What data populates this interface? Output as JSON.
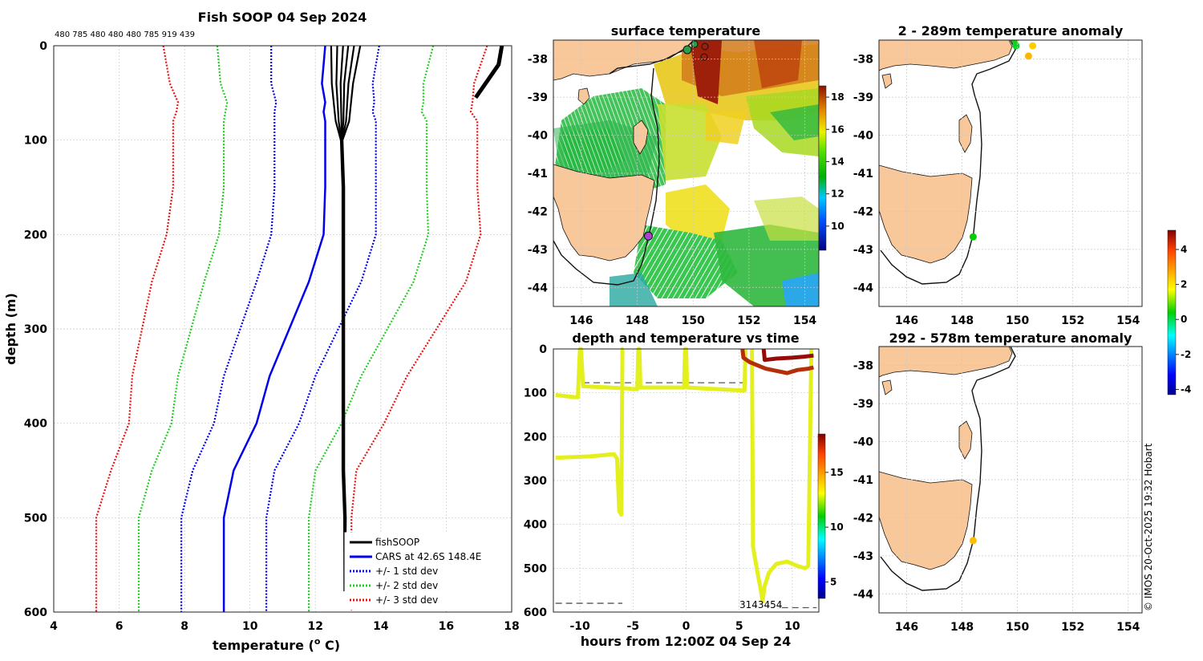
{
  "chart_data": [
    {
      "id": "profile",
      "type": "line",
      "title": "Fish SOOP 04 Sep 2024",
      "top_annotation": "480 785 480 480 480 785 919 439",
      "xlabel": "temperature (",
      "xlabel_sup": "o",
      "xlabel_end": " C)",
      "ylabel": "depth (m)",
      "xlim": [
        4,
        18
      ],
      "ylim": [
        0,
        600
      ],
      "xticks": [
        "4",
        "6",
        "8",
        "10",
        "12",
        "14",
        "16",
        "18"
      ],
      "yticks": [
        "0",
        "100",
        "200",
        "300",
        "400",
        "500",
        "600"
      ],
      "depths": [
        0,
        20,
        40,
        60,
        70,
        80,
        100,
        150,
        200,
        250,
        300,
        350,
        400,
        450,
        500,
        600
      ],
      "cars_mean": [
        12.3,
        12.25,
        12.2,
        12.3,
        12.25,
        12.3,
        12.3,
        12.3,
        12.25,
        11.8,
        11.2,
        10.6,
        10.2,
        9.5,
        9.2,
        9.2
      ],
      "cars_std1": [
        1.65,
        1.6,
        1.55,
        1.5,
        1.5,
        1.55,
        1.55,
        1.55,
        1.6,
        1.6,
        1.5,
        1.4,
        1.3,
        1.25,
        1.3,
        1.3
      ],
      "fishsoop_mean": [
        12.9,
        12.85,
        12.8,
        12.8,
        12.8,
        12.8,
        12.8,
        12.85,
        12.85,
        12.85,
        12.85,
        12.85,
        12.85,
        12.85,
        12.9,
        12.9
      ],
      "fishsoop_bottom": 578,
      "fishsoop_warm_tail": [
        [
          17.7,
          0
        ],
        [
          17.6,
          20
        ],
        [
          17.2,
          40
        ],
        [
          16.9,
          55
        ]
      ],
      "legend": [
        {
          "label": "fishSOOP",
          "color": "#000000",
          "style": "solid"
        },
        {
          "label": "CARS at 42.6S 148.4E",
          "color": "#0000ee",
          "style": "solid"
        },
        {
          "label": "+/- 1 std dev",
          "color": "#0000ee",
          "style": "dotted"
        },
        {
          "label": "+/- 2 std dev",
          "color": "#22cc22",
          "style": "dotted"
        },
        {
          "label": "+/- 3 std dev",
          "color": "#ee1111",
          "style": "dotted"
        }
      ]
    },
    {
      "id": "sst_map",
      "type": "heatmap",
      "title": "surface temperature",
      "xticks": [
        "146",
        "148",
        "150",
        "152",
        "154"
      ],
      "yticks": [
        "-38",
        "-39",
        "-40",
        "-41",
        "-42",
        "-43",
        "-44"
      ],
      "lon_range": [
        145,
        154.5
      ],
      "lat_range": [
        -44.5,
        -37.5
      ],
      "colorbar_ticks": [
        "18",
        "16",
        "14",
        "12",
        "10"
      ],
      "colorbar_range": [
        8.5,
        18.7
      ],
      "marker": {
        "lon": 148.4,
        "lat": -42.65,
        "color": "#aa44cc"
      }
    },
    {
      "id": "depth_time",
      "type": "line",
      "title": "depth and temperature vs time",
      "xlabel": "hours from 12:00Z 04 Sep 24",
      "xlim": [
        -12.5,
        12.5
      ],
      "ylim": [
        0,
        600
      ],
      "xticks": [
        "-10",
        "-5",
        "0",
        "5",
        "10"
      ],
      "xtick_values": [
        -10,
        -5,
        0,
        5,
        10
      ],
      "yticks": [
        "0",
        "100",
        "200",
        "300",
        "400",
        "500",
        "600"
      ],
      "colorbar_ticks": [
        "15",
        "10",
        "5"
      ],
      "colorbar_range": [
        3.5,
        18.5
      ],
      "bottom_labels": "3143454",
      "series": [
        {
          "name": "cool-segment-1",
          "color": "#e4f01e",
          "points": [
            [
              -12.3,
              105
            ],
            [
              -10.5,
              110
            ],
            [
              -10.2,
              110
            ],
            [
              -10.0,
              0
            ],
            [
              -9.9,
              0
            ],
            [
              -9.7,
              85
            ],
            [
              -5.5,
              90
            ],
            [
              -4.6,
              92
            ],
            [
              -4.5,
              0
            ],
            [
              -4.4,
              0
            ],
            [
              -4.3,
              88
            ],
            [
              -0.2,
              88
            ],
            [
              -0.1,
              0
            ],
            [
              0.0,
              0
            ],
            [
              0.1,
              88
            ],
            [
              5.5,
              95
            ],
            [
              5.6,
              0
            ]
          ]
        },
        {
          "name": "cool-segment-2",
          "color": "#e4f01e",
          "points": [
            [
              -12.3,
              248
            ],
            [
              -9.0,
              245
            ],
            [
              -6.8,
              240
            ],
            [
              -6.5,
              250
            ],
            [
              -6.3,
              370
            ],
            [
              -6.1,
              378
            ],
            [
              -6.0,
              0
            ],
            [
              -5.9,
              0
            ]
          ]
        },
        {
          "name": "cool-segment-3",
          "color": "#e4f01e",
          "points": [
            [
              6.2,
              0
            ],
            [
              6.3,
              450
            ],
            [
              6.5,
              480
            ],
            [
              6.8,
              520
            ],
            [
              7.0,
              545
            ],
            [
              7.2,
              575
            ],
            [
              7.4,
              540
            ],
            [
              7.8,
              510
            ],
            [
              8.5,
              490
            ],
            [
              9.5,
              485
            ],
            [
              10.5,
              495
            ],
            [
              11.2,
              500
            ],
            [
              11.5,
              495
            ],
            [
              11.8,
              0
            ]
          ]
        },
        {
          "name": "warm-segment-1",
          "color": "#b42e0a",
          "points": [
            [
              5.3,
              0
            ],
            [
              5.4,
              20
            ],
            [
              6.0,
              30
            ],
            [
              7.0,
              40
            ],
            [
              7.5,
              45
            ],
            [
              8.5,
              50
            ],
            [
              9.5,
              55
            ],
            [
              10.5,
              48
            ],
            [
              11.5,
              45
            ],
            [
              12.0,
              42
            ]
          ]
        },
        {
          "name": "warm-segment-2",
          "color": "#960a0a",
          "points": [
            [
              7.3,
              0
            ],
            [
              7.4,
              25
            ],
            [
              8.5,
              22
            ],
            [
              10.0,
              20
            ],
            [
              11.0,
              18
            ],
            [
              12.0,
              15
            ]
          ]
        }
      ],
      "dash_lines": [
        {
          "y": 77,
          "x0": -9.7,
          "x1": 5.5
        },
        {
          "y": 580,
          "x0": -12.3,
          "x1": -6.0
        },
        {
          "y": 590,
          "x0": 9.0,
          "x1": 12.3
        }
      ]
    },
    {
      "id": "anom_upper",
      "type": "scatter",
      "title": "2 - 289m temperature anomaly",
      "xticks": [
        "146",
        "148",
        "150",
        "152",
        "154"
      ],
      "yticks": [
        "-38",
        "-39",
        "-40",
        "-41",
        "-42",
        "-43",
        "-44"
      ],
      "lon_range": [
        145,
        154.5
      ],
      "lat_range": [
        -44.5,
        -37.5
      ],
      "points": [
        {
          "lon": 149.95,
          "lat": -37.65,
          "anom": 0.2
        },
        {
          "lon": 149.9,
          "lat": -37.5,
          "anom": 0.5
        },
        {
          "lon": 150.55,
          "lat": -37.65,
          "anom": 2.3
        },
        {
          "lon": 150.4,
          "lat": -37.92,
          "anom": 2.6
        },
        {
          "lon": 148.4,
          "lat": -42.67,
          "anom": 0.4
        }
      ]
    },
    {
      "id": "anom_lower",
      "type": "scatter",
      "title": "292 - 578m temperature anomaly",
      "xticks": [
        "146",
        "148",
        "150",
        "152",
        "154"
      ],
      "yticks": [
        "-38",
        "-39",
        "-40",
        "-41",
        "-42",
        "-43",
        "-44"
      ],
      "lon_range": [
        145,
        154.5
      ],
      "lat_range": [
        -44.5,
        -37.5
      ],
      "points": [
        {
          "lon": 148.4,
          "lat": -42.6,
          "anom": 2.5
        }
      ]
    }
  ],
  "anomaly_colorbar": {
    "ticks": [
      "4",
      "2",
      "0",
      "-2",
      "-4"
    ],
    "range": [
      -4.3,
      5.1
    ]
  },
  "credit": "© IMOS 20-Oct-2025 19:32 Hobart"
}
